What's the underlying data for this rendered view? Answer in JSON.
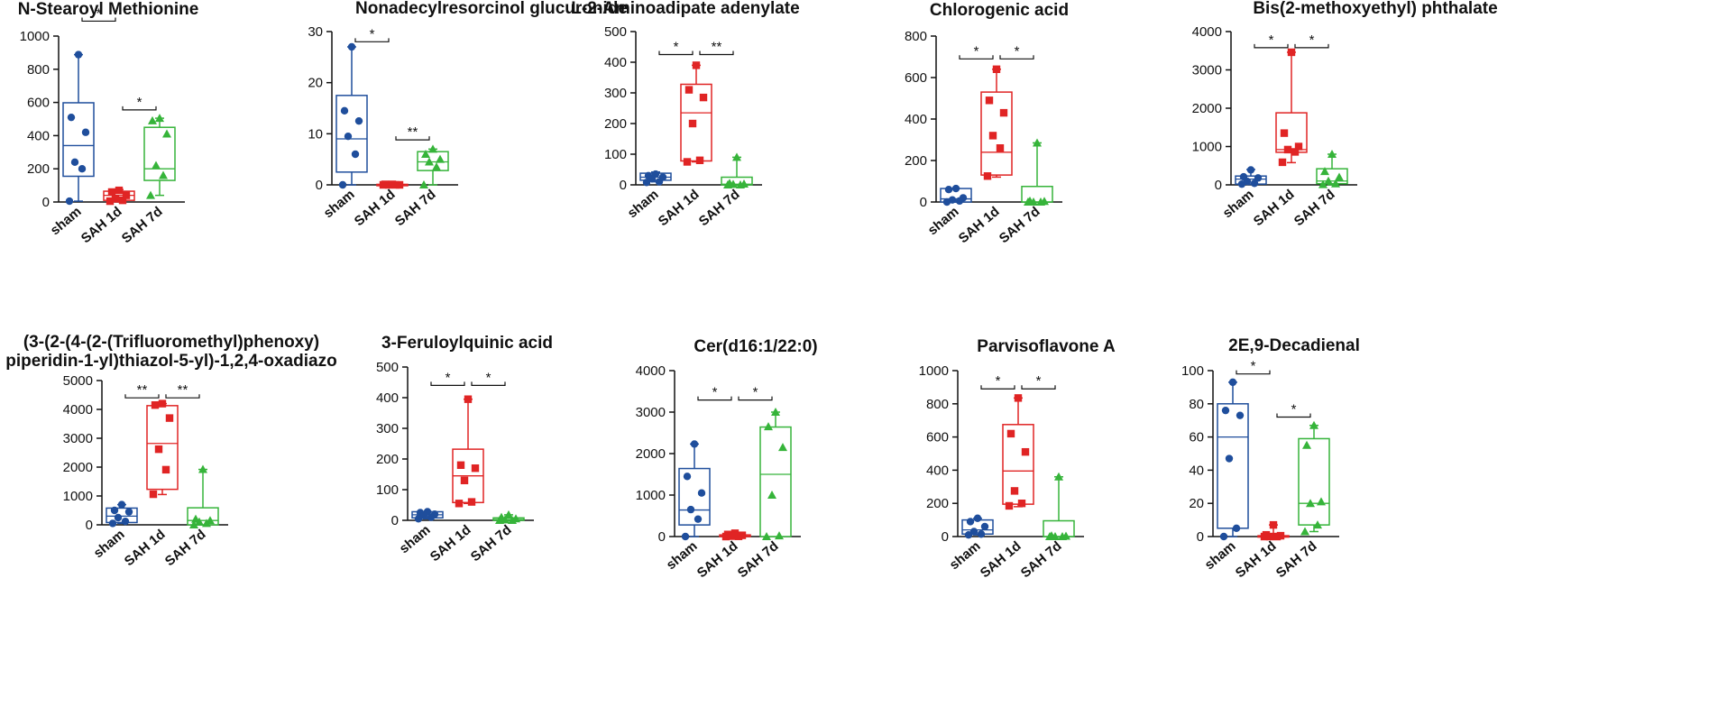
{
  "colors": {
    "sham": "#1f4e9c",
    "sah1d": "#e02424",
    "sah7d": "#36b43a",
    "axis": "#111111"
  },
  "chart_data": [
    {
      "type": "box",
      "title": "N-Stearoyl Methionine",
      "categories": [
        "sham",
        "SAH 1d",
        "SAH 7d"
      ],
      "ylim": [
        0,
        1000
      ],
      "yticks": [
        0,
        200,
        400,
        600,
        800,
        1000
      ],
      "ytick_labels": [
        "0",
        "200",
        "400",
        "600",
        "800",
        "1000"
      ],
      "series": [
        {
          "name": "sham",
          "marker": "circle",
          "min": 5,
          "q1": 155,
          "median": 340,
          "q3": 598,
          "max": 888,
          "points": [
            888,
            510,
            420,
            240,
            200,
            5
          ]
        },
        {
          "name": "SAH 1d",
          "marker": "square",
          "min": 0,
          "q1": 10,
          "median": 40,
          "q3": 65,
          "max": 75,
          "points": [
            70,
            60,
            40,
            20,
            10,
            5
          ]
        },
        {
          "name": "SAH 7d",
          "marker": "triangle",
          "min": 40,
          "q1": 130,
          "median": 200,
          "q3": 450,
          "max": 505,
          "points": [
            505,
            490,
            410,
            220,
            160,
            40
          ]
        }
      ],
      "significance": [
        {
          "pair": [
            0,
            1
          ],
          "label": "*",
          "y": 1090
        },
        {
          "pair": [
            1,
            2
          ],
          "label": "*",
          "y": 555
        }
      ]
    },
    {
      "type": "box",
      "title": "Nonadecylresorcinol glucuronide",
      "categories": [
        "sham",
        "SAH 1d",
        "SAH 7d"
      ],
      "ylim": [
        0,
        30
      ],
      "yticks": [
        0,
        10,
        20,
        30
      ],
      "ytick_labels": [
        "0",
        "10",
        "20",
        "30"
      ],
      "series": [
        {
          "name": "sham",
          "marker": "circle",
          "min": 0,
          "q1": 2.5,
          "median": 9,
          "q3": 17.5,
          "max": 27,
          "points": [
            27,
            14.5,
            12.5,
            9.5,
            6,
            0
          ]
        },
        {
          "name": "SAH 1d",
          "marker": "square",
          "min": 0,
          "q1": 0,
          "median": 0,
          "q3": 0.1,
          "max": 0.1,
          "points": [
            0.1,
            0.1,
            0,
            0,
            0,
            0
          ]
        },
        {
          "name": "SAH 7d",
          "marker": "triangle",
          "min": 0,
          "q1": 2.8,
          "median": 4.5,
          "q3": 6.5,
          "max": 7,
          "points": [
            7,
            6,
            5,
            4.5,
            3.5,
            0
          ]
        }
      ],
      "significance": [
        {
          "pair": [
            0,
            1
          ],
          "label": "*",
          "y": 28
        },
        {
          "pair": [
            1,
            2
          ],
          "label": "**",
          "y": 8.8
        }
      ]
    },
    {
      "type": "box",
      "title": "L-2-Aminoadipate adenylate",
      "categories": [
        "sham",
        "SAH 1d",
        "SAH 7d"
      ],
      "ylim": [
        0,
        500
      ],
      "yticks": [
        0,
        100,
        200,
        300,
        400,
        500
      ],
      "ytick_labels": [
        "0",
        "100",
        "200",
        "300",
        "400",
        "500"
      ],
      "series": [
        {
          "name": "sham",
          "marker": "circle",
          "min": 10,
          "q1": 15,
          "median": 25,
          "q3": 38,
          "max": 42,
          "points": [
            35,
            30,
            25,
            20,
            10,
            8
          ]
        },
        {
          "name": "SAH 1d",
          "marker": "square",
          "min": 75,
          "q1": 78,
          "median": 235,
          "q3": 328,
          "max": 390,
          "points": [
            390,
            310,
            285,
            200,
            80,
            75
          ]
        },
        {
          "name": "SAH 7d",
          "marker": "triangle",
          "min": 0,
          "q1": 0,
          "median": 2,
          "q3": 25,
          "max": 90,
          "points": [
            90,
            5,
            3,
            2,
            0,
            0
          ]
        }
      ],
      "significance": [
        {
          "pair": [
            0,
            1
          ],
          "label": "*",
          "y": 425
        },
        {
          "pair": [
            1,
            2
          ],
          "label": "**",
          "y": 425
        }
      ]
    },
    {
      "type": "box",
      "title": "Chlorogenic acid",
      "categories": [
        "sham",
        "SAH 1d",
        "SAH 7d"
      ],
      "ylim": [
        0,
        800
      ],
      "yticks": [
        0,
        200,
        400,
        600,
        800
      ],
      "ytick_labels": [
        "0",
        "200",
        "400",
        "600",
        "800"
      ],
      "series": [
        {
          "name": "sham",
          "marker": "circle",
          "min": 0,
          "q1": 0,
          "median": 15,
          "q3": 65,
          "max": 65,
          "points": [
            65,
            60,
            20,
            10,
            5,
            0
          ]
        },
        {
          "name": "SAH 1d",
          "marker": "square",
          "min": 120,
          "q1": 130,
          "median": 240,
          "q3": 530,
          "max": 640,
          "points": [
            640,
            490,
            430,
            320,
            260,
            125
          ]
        },
        {
          "name": "SAH 7d",
          "marker": "triangle",
          "min": 0,
          "q1": 0,
          "median": 0,
          "q3": 75,
          "max": 285,
          "points": [
            285,
            5,
            3,
            0,
            0,
            0
          ]
        }
      ],
      "significance": [
        {
          "pair": [
            0,
            1
          ],
          "label": "*",
          "y": 690
        },
        {
          "pair": [
            1,
            2
          ],
          "label": "*",
          "y": 690
        }
      ]
    },
    {
      "type": "box",
      "title": "Bis(2-methoxyethyl) phthalate",
      "categories": [
        "sham",
        "SAH 1d",
        "SAH 7d"
      ],
      "ylim": [
        0,
        4000
      ],
      "yticks": [
        0,
        1000,
        2000,
        3000,
        4000
      ],
      "ytick_labels": [
        "0",
        "1000",
        "2000",
        "3000",
        "4000"
      ],
      "series": [
        {
          "name": "sham",
          "marker": "circle",
          "min": 10,
          "q1": 20,
          "median": 150,
          "q3": 230,
          "max": 400,
          "points": [
            390,
            210,
            180,
            90,
            40,
            20
          ]
        },
        {
          "name": "SAH 1d",
          "marker": "square",
          "min": 580,
          "q1": 850,
          "median": 920,
          "q3": 1880,
          "max": 3460,
          "points": [
            3460,
            1350,
            1000,
            920,
            860,
            590
          ]
        },
        {
          "name": "SAH 7d",
          "marker": "triangle",
          "min": 0,
          "q1": 30,
          "median": 100,
          "q3": 420,
          "max": 800,
          "points": [
            800,
            350,
            200,
            100,
            30,
            10
          ]
        }
      ],
      "significance": [
        {
          "pair": [
            0,
            1
          ],
          "label": "*",
          "y": 3580
        },
        {
          "pair": [
            1,
            2
          ],
          "label": "*",
          "y": 3580
        }
      ]
    },
    {
      "type": "box",
      "title_lines": [
        "(3-(2-(4-(2-(Trifluoromethyl)phenoxy)",
        "piperidin-1-yl)thiazol-5-yl)-1,2,4-oxadiazo"
      ],
      "categories": [
        "sham",
        "SAH 1d",
        "SAH 7d"
      ],
      "ylim": [
        0,
        5000
      ],
      "yticks": [
        0,
        1000,
        2000,
        3000,
        4000,
        5000
      ],
      "ytick_labels": [
        "0",
        "1000",
        "2000",
        "3000",
        "4000",
        "5000"
      ],
      "series": [
        {
          "name": "sham",
          "marker": "circle",
          "min": 50,
          "q1": 80,
          "median": 300,
          "q3": 580,
          "max": 700,
          "points": [
            700,
            500,
            450,
            250,
            120,
            50
          ]
        },
        {
          "name": "SAH 1d",
          "marker": "square",
          "min": 1050,
          "q1": 1230,
          "median": 2820,
          "q3": 4130,
          "max": 4200,
          "points": [
            4200,
            4150,
            3700,
            2620,
            1910,
            1060
          ]
        },
        {
          "name": "SAH 7d",
          "marker": "triangle",
          "min": 0,
          "q1": 0,
          "median": 150,
          "q3": 590,
          "max": 1920,
          "points": [
            1920,
            200,
            150,
            100,
            50,
            0
          ]
        }
      ],
      "significance": [
        {
          "pair": [
            0,
            1
          ],
          "label": "**",
          "y": 4400
        },
        {
          "pair": [
            1,
            2
          ],
          "label": "**",
          "y": 4400
        }
      ]
    },
    {
      "type": "box",
      "title": "3-Feruloylquinic acid",
      "categories": [
        "sham",
        "SAH 1d",
        "SAH 7d"
      ],
      "ylim": [
        0,
        500
      ],
      "yticks": [
        0,
        100,
        200,
        300,
        400,
        500
      ],
      "ytick_labels": [
        "0",
        "100",
        "200",
        "300",
        "400",
        "500"
      ],
      "series": [
        {
          "name": "sham",
          "marker": "circle",
          "min": 5,
          "q1": 8,
          "median": 18,
          "q3": 28,
          "max": 28,
          "points": [
            28,
            25,
            20,
            15,
            10,
            5
          ]
        },
        {
          "name": "SAH 1d",
          "marker": "square",
          "min": 55,
          "q1": 58,
          "median": 145,
          "q3": 232,
          "max": 395,
          "points": [
            395,
            180,
            170,
            130,
            60,
            55
          ]
        },
        {
          "name": "SAH 7d",
          "marker": "triangle",
          "min": 0,
          "q1": 0,
          "median": 3,
          "q3": 8,
          "max": 18,
          "points": [
            18,
            10,
            5,
            2,
            0,
            0
          ]
        }
      ],
      "significance": [
        {
          "pair": [
            0,
            1
          ],
          "label": "*",
          "y": 440
        },
        {
          "pair": [
            1,
            2
          ],
          "label": "*",
          "y": 440
        }
      ]
    },
    {
      "type": "box",
      "title": "Cer(d16:1/22:0)",
      "categories": [
        "sham",
        "SAH 1d",
        "SAH 7d"
      ],
      "ylim": [
        0,
        4000
      ],
      "yticks": [
        0,
        1000,
        2000,
        3000,
        4000
      ],
      "ytick_labels": [
        "0",
        "1000",
        "2000",
        "3000",
        "4000"
      ],
      "series": [
        {
          "name": "sham",
          "marker": "circle",
          "min": 0,
          "q1": 280,
          "median": 640,
          "q3": 1640,
          "max": 2230,
          "points": [
            2230,
            1450,
            1050,
            650,
            420,
            0
          ]
        },
        {
          "name": "SAH 1d",
          "marker": "square",
          "min": 0,
          "q1": 0,
          "median": 10,
          "q3": 40,
          "max": 80,
          "points": [
            80,
            50,
            30,
            10,
            5,
            0
          ]
        },
        {
          "name": "SAH 7d",
          "marker": "triangle",
          "min": 0,
          "q1": 0,
          "median": 1500,
          "q3": 2640,
          "max": 3000,
          "points": [
            3000,
            2650,
            2150,
            1000,
            20,
            0
          ]
        }
      ],
      "significance": [
        {
          "pair": [
            0,
            1
          ],
          "label": "*",
          "y": 3290
        },
        {
          "pair": [
            1,
            2
          ],
          "label": "*",
          "y": 3290
        }
      ]
    },
    {
      "type": "box",
      "title": "Parvisoflavone A",
      "categories": [
        "sham",
        "SAH 1d",
        "SAH 7d"
      ],
      "ylim": [
        0,
        1000
      ],
      "yticks": [
        0,
        200,
        400,
        600,
        800,
        1000
      ],
      "ytick_labels": [
        "0",
        "200",
        "400",
        "600",
        "800",
        "1000"
      ],
      "series": [
        {
          "name": "sham",
          "marker": "circle",
          "min": 10,
          "q1": 15,
          "median": 40,
          "q3": 100,
          "max": 110,
          "points": [
            110,
            90,
            60,
            30,
            15,
            10
          ]
        },
        {
          "name": "SAH 1d",
          "marker": "square",
          "min": 180,
          "q1": 195,
          "median": 395,
          "q3": 675,
          "max": 835,
          "points": [
            835,
            620,
            510,
            275,
            200,
            185
          ]
        },
        {
          "name": "SAH 7d",
          "marker": "triangle",
          "min": 0,
          "q1": 0,
          "median": 0,
          "q3": 95,
          "max": 360,
          "points": [
            360,
            5,
            3,
            0,
            0,
            0
          ]
        }
      ],
      "significance": [
        {
          "pair": [
            0,
            1
          ],
          "label": "*",
          "y": 890
        },
        {
          "pair": [
            1,
            2
          ],
          "label": "*",
          "y": 890
        }
      ]
    },
    {
      "type": "box",
      "title": "2E,9-Decadienal",
      "categories": [
        "sham",
        "SAH 1d",
        "SAH 7d"
      ],
      "ylim": [
        0,
        100
      ],
      "yticks": [
        0,
        20,
        40,
        60,
        80,
        100
      ],
      "ytick_labels": [
        "0",
        "20",
        "40",
        "60",
        "80",
        "100"
      ],
      "series": [
        {
          "name": "sham",
          "marker": "circle",
          "min": 0,
          "q1": 5,
          "median": 60,
          "q3": 80,
          "max": 93,
          "points": [
            93,
            76,
            73,
            47,
            5,
            0
          ]
        },
        {
          "name": "SAH 1d",
          "marker": "square",
          "min": 0,
          "q1": 0,
          "median": 0,
          "q3": 0.5,
          "max": 7,
          "points": [
            7,
            1,
            0.5,
            0,
            0,
            0
          ]
        },
        {
          "name": "SAH 7d",
          "marker": "triangle",
          "min": 3,
          "q1": 7,
          "median": 20,
          "q3": 59,
          "max": 67,
          "points": [
            67,
            55,
            21,
            20,
            7,
            3
          ]
        }
      ],
      "significance": [
        {
          "pair": [
            0,
            1
          ],
          "label": "*",
          "y": 98
        },
        {
          "pair": [
            1,
            2
          ],
          "label": "*",
          "y": 72
        }
      ]
    }
  ]
}
